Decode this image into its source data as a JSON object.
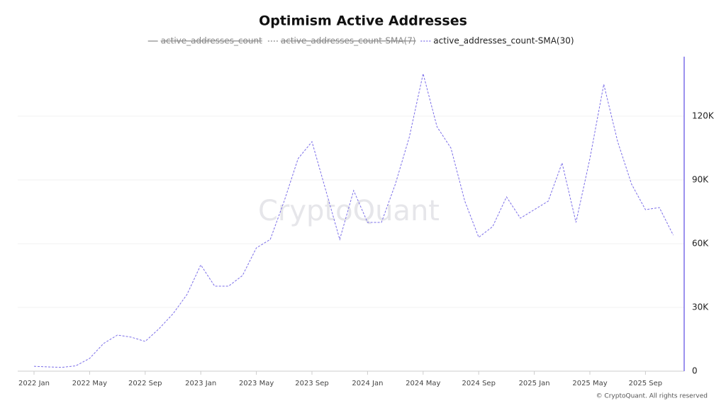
{
  "chart_data": {
    "type": "line",
    "title": "Optimism Active Addresses",
    "watermark": "CryptoQuant",
    "footer": "© CryptoQuant. All rights reserved",
    "x": [
      "2022 Jan",
      "2022 Feb",
      "2022 Mar",
      "2022 Apr",
      "2022 May",
      "2022 Jun",
      "2022 Jul",
      "2022 Aug",
      "2022 Sep",
      "2022 Oct",
      "2022 Nov",
      "2022 Dec",
      "2023 Jan",
      "2023 Feb",
      "2023 Mar",
      "2023 Apr",
      "2023 May",
      "2023 Jun",
      "2023 Jul",
      "2023 Aug",
      "2023 Sep",
      "2023 Oct",
      "2023 Nov",
      "2023 Dec",
      "2024 Jan",
      "2024 Feb",
      "2024 Mar",
      "2024 Apr",
      "2024 May",
      "2024 Jun",
      "2024 Jul",
      "2024 Aug",
      "2024 Sep",
      "2024 Oct",
      "2024 Nov",
      "2024 Dec",
      "2025 Jan",
      "2025 Feb",
      "2025 Mar",
      "2025 Apr",
      "2025 May",
      "2025 Jun",
      "2025 Jul",
      "2025 Aug",
      "2025 Sep",
      "2025 Oct",
      "2025 Nov"
    ],
    "xticks": [
      "2022 Jan",
      "2022 May",
      "2022 Sep",
      "2023 Jan",
      "2023 May",
      "2023 Sep",
      "2024 Jan",
      "2024 May",
      "2024 Sep",
      "2025 Jan",
      "2025 May",
      "2025 Sep"
    ],
    "series": [
      {
        "name": "active_addresses_count",
        "color": "#555555",
        "hidden": true
      },
      {
        "name": "active_addresses_count-SMA(7)",
        "color": "#999999",
        "hidden": true
      },
      {
        "name": "active_addresses_count-SMA(30)",
        "color": "#7b6ee8",
        "values": [
          2300,
          2000,
          1800,
          2500,
          6000,
          13000,
          17000,
          16000,
          14000,
          20000,
          27000,
          36000,
          50000,
          40000,
          40000,
          45000,
          58000,
          62000,
          80000,
          100000,
          108000,
          85000,
          62000,
          85000,
          70000,
          70000,
          88000,
          110000,
          140000,
          115000,
          105000,
          80000,
          63000,
          68000,
          82000,
          72000,
          76000,
          80000,
          98000,
          70000,
          100000,
          135000,
          108000,
          88000,
          76000,
          77000,
          64000
        ]
      }
    ],
    "ylim": [
      0,
      148000
    ],
    "yticks": [
      {
        "value": 0,
        "label": "0"
      },
      {
        "value": 30000,
        "label": "30K"
      },
      {
        "value": 60000,
        "label": "60K"
      },
      {
        "value": 90000,
        "label": "90K"
      },
      {
        "value": 120000,
        "label": "120K"
      }
    ],
    "grid": true
  }
}
